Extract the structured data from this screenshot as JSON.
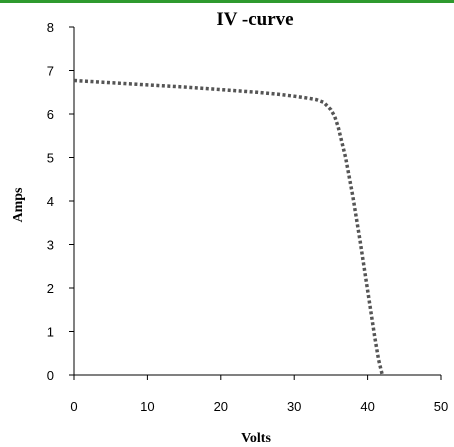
{
  "chart_data": {
    "type": "line",
    "title": "IV -curve",
    "xlabel": "Volts",
    "ylabel": "Amps",
    "xlim": [
      0,
      50
    ],
    "ylim": [
      0,
      8
    ],
    "xticks": [
      0,
      10,
      20,
      30,
      40,
      50
    ],
    "yticks": [
      0,
      1,
      2,
      3,
      4,
      5,
      6,
      7,
      8
    ],
    "grid": false,
    "legend": "none",
    "series": [
      {
        "color": "#555555",
        "style": "dotted",
        "x": [
          0,
          5,
          10,
          15,
          20,
          25,
          28,
          30,
          32,
          33,
          34,
          35,
          35.5,
          36,
          37,
          38,
          39,
          40,
          41,
          41.5,
          42
        ],
        "y": [
          6.77,
          6.72,
          6.67,
          6.62,
          6.56,
          6.5,
          6.45,
          6.41,
          6.36,
          6.33,
          6.27,
          6.1,
          5.95,
          5.7,
          5.0,
          4.1,
          3.05,
          1.95,
          0.85,
          0.35,
          0.0
        ]
      }
    ]
  }
}
